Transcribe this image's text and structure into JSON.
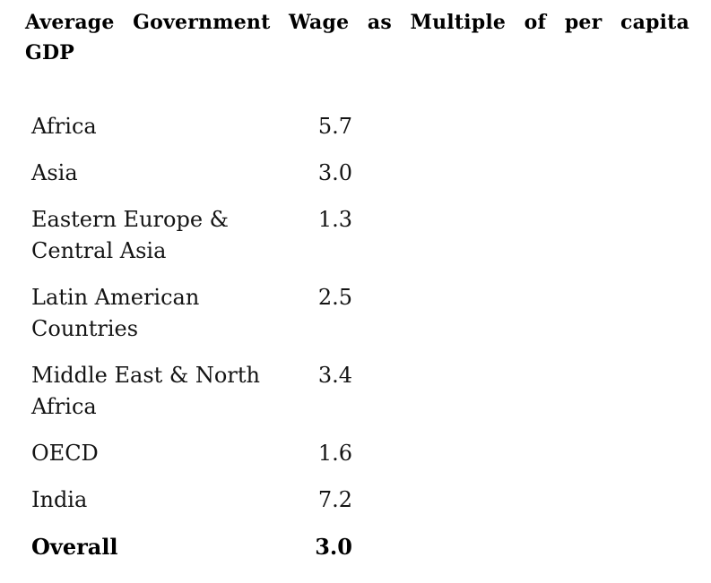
{
  "title": {
    "line1": "Average Government Wage as Multiple of per capita",
    "line2": "GDP"
  },
  "colors": {
    "background": "#ffffff",
    "text": "#141414",
    "title_text": "#000000"
  },
  "table": {
    "rows": [
      {
        "label": "Africa",
        "value": "5.7",
        "bold": false
      },
      {
        "label": "Asia",
        "value": "3.0",
        "bold": false
      },
      {
        "label": "Eastern Europe & Central Asia",
        "value": "1.3",
        "bold": false
      },
      {
        "label": "Latin American Countries",
        "value": "2.5",
        "bold": false
      },
      {
        "label": "Middle East & North Africa",
        "value": "3.4",
        "bold": false
      },
      {
        "label": "OECD",
        "value": "1.6",
        "bold": false
      },
      {
        "label": "India",
        "value": "7.2",
        "bold": false
      },
      {
        "label": "Overall",
        "value": "3.0",
        "bold": true
      }
    ]
  },
  "chart_data": {
    "type": "table",
    "title": "Average Government Wage as Multiple of per capita GDP",
    "categories": [
      "Africa",
      "Asia",
      "Eastern Europe & Central Asia",
      "Latin American Countries",
      "Middle East & North Africa",
      "OECD",
      "India",
      "Overall"
    ],
    "values": [
      5.7,
      3.0,
      1.3,
      2.5,
      3.4,
      1.6,
      7.2,
      3.0
    ],
    "value_format": "one decimal place",
    "emphasized_category": "Overall",
    "legend": "none",
    "grid": false
  }
}
